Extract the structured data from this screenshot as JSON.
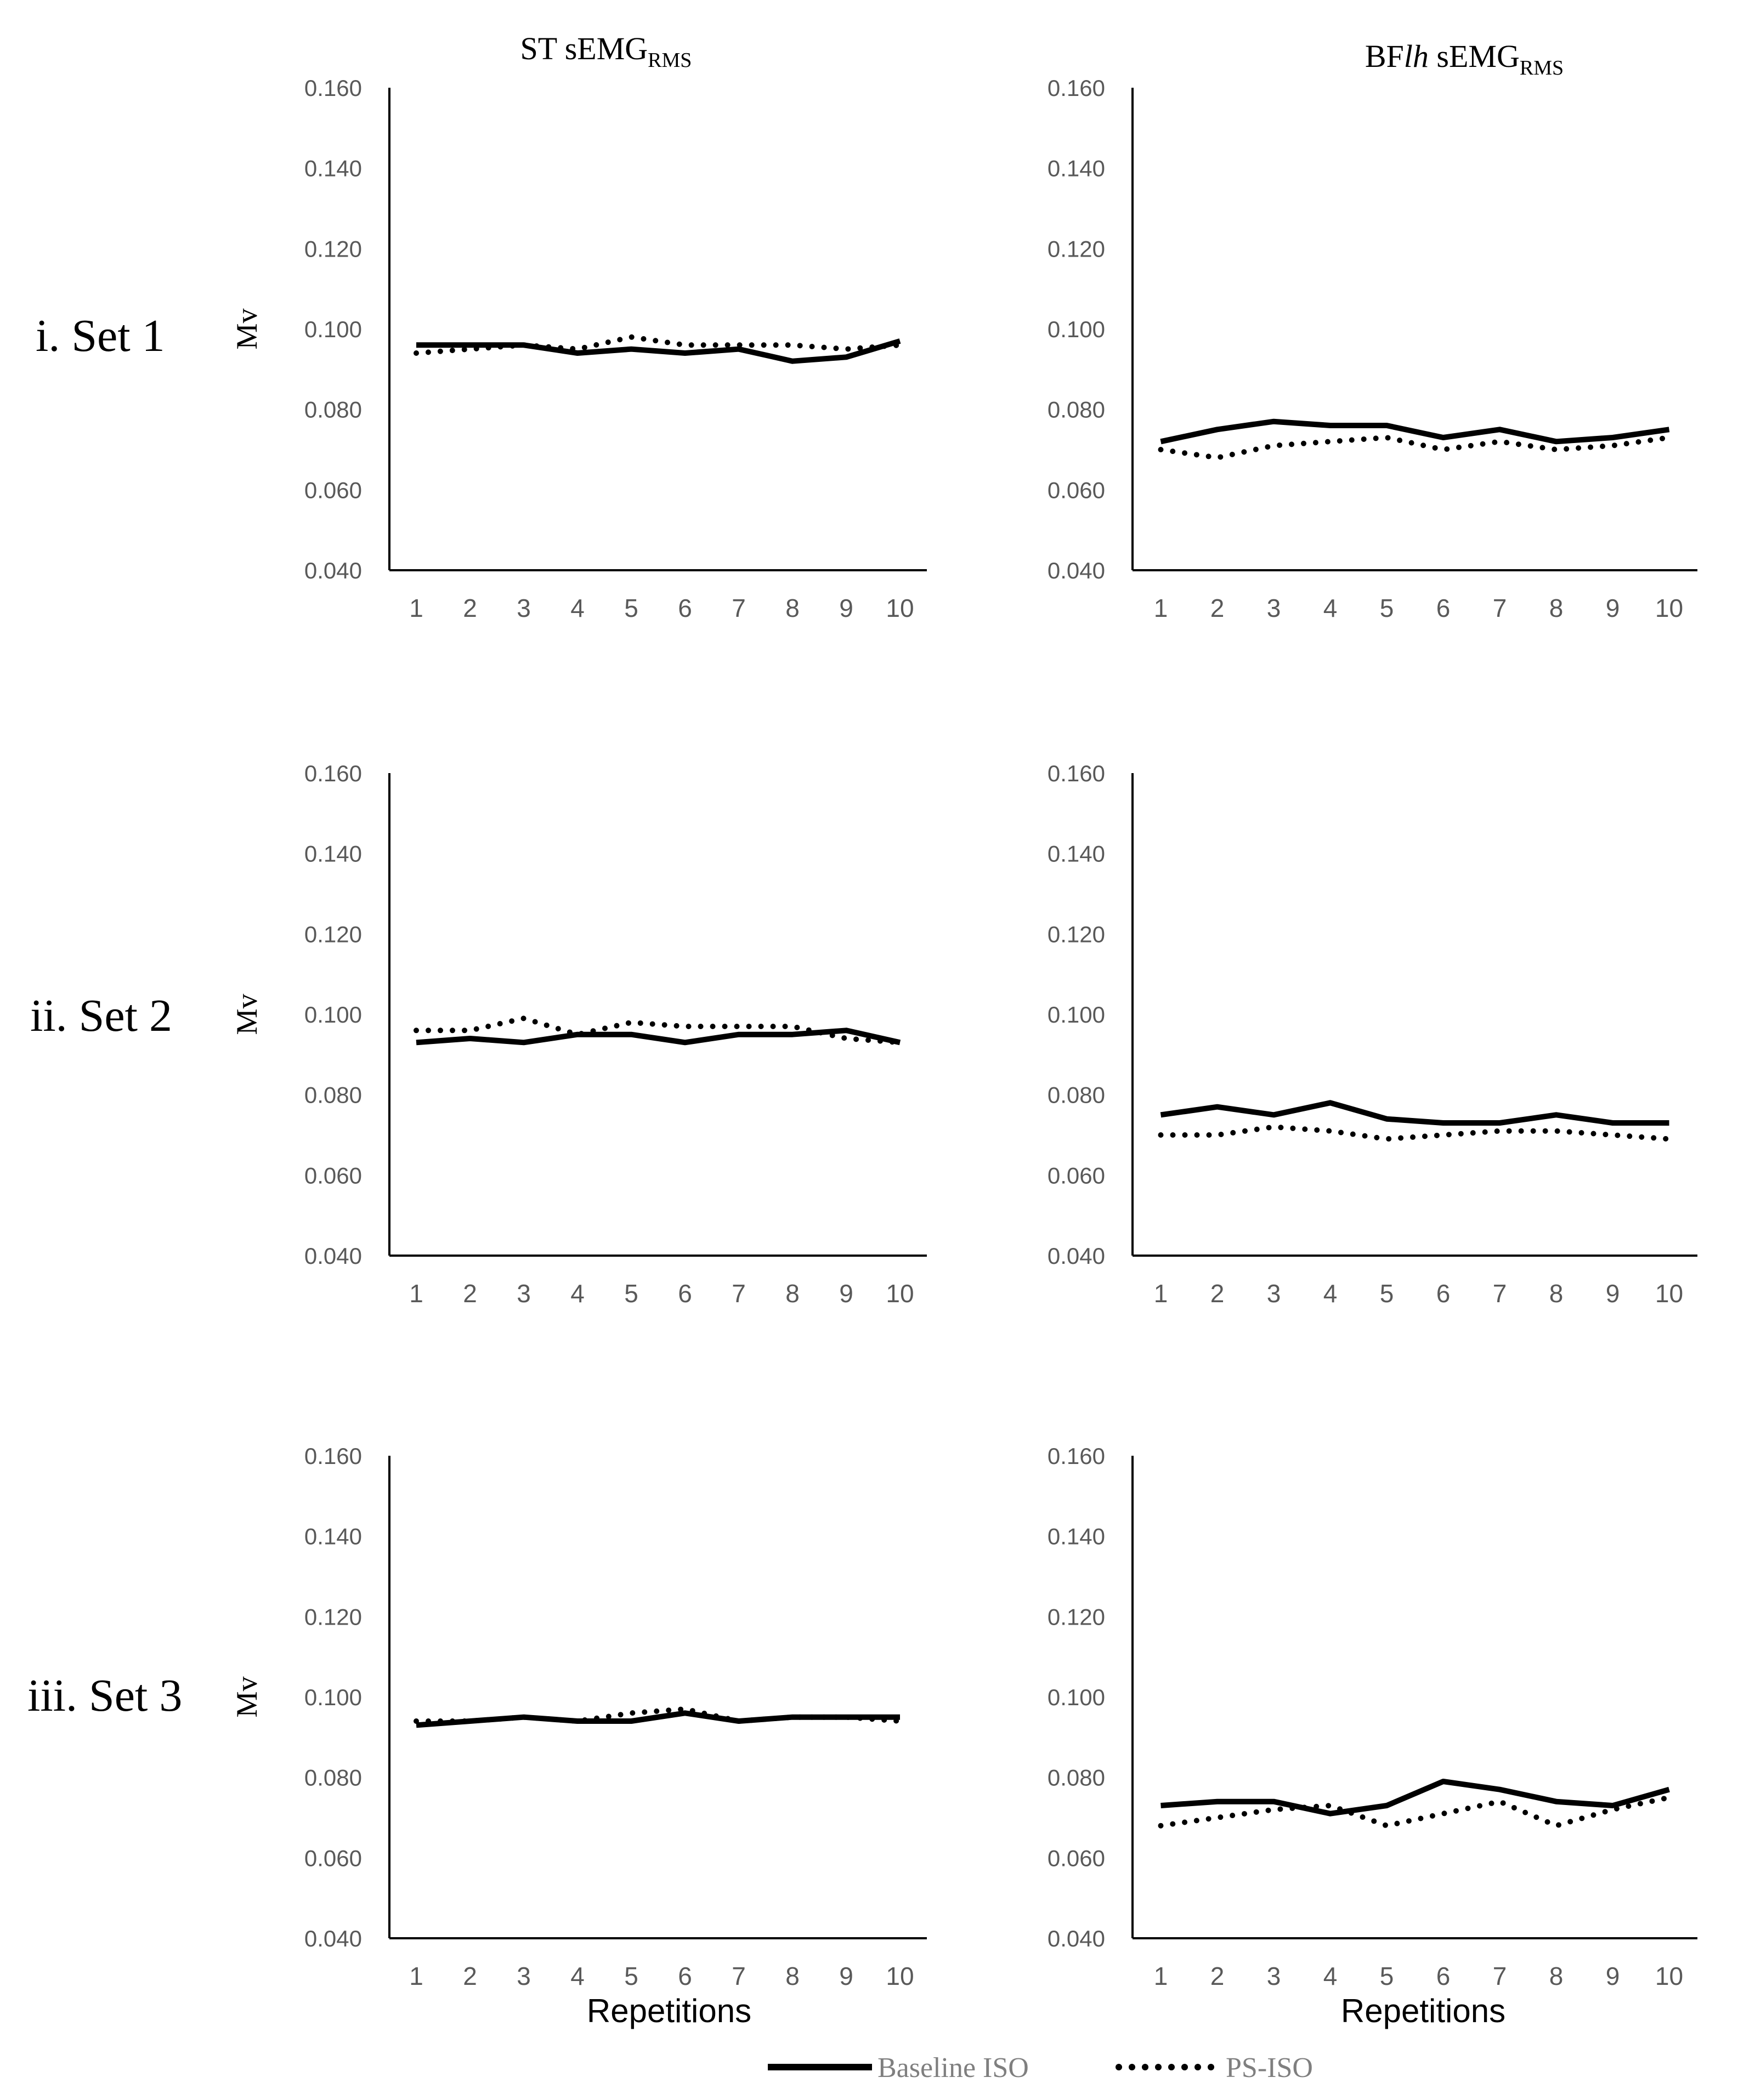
{
  "column_titles": [
    {
      "prefix": "ST",
      "prefix_italic": "",
      "main": "sEMG",
      "sub": "RMS"
    },
    {
      "prefix": "BF",
      "prefix_italic": "lh",
      "main": "sEMG",
      "sub": "RMS"
    }
  ],
  "row_labels": [
    "i. Set 1",
    "ii. Set 2",
    "iii. Set 3"
  ],
  "ylabel": "Mv",
  "xlabel": "Repetitions",
  "legend": [
    {
      "label": "Baseline ISO",
      "style": "solid"
    },
    {
      "label": "PS-ISO",
      "style": "dotted"
    }
  ],
  "colors": {
    "line": "#000000",
    "axis": "#000000",
    "tick_text": "#595959",
    "legend_text": "#7f7f7f"
  },
  "chart_data": [
    {
      "type": "line",
      "row": 1,
      "col": 1,
      "title": "ST sEMG RMS",
      "xlabel": "",
      "ylabel": "Mv",
      "x": [
        1,
        2,
        3,
        4,
        5,
        6,
        7,
        8,
        9,
        10
      ],
      "ylim": [
        0.04,
        0.16
      ],
      "yticks": [
        "0.040",
        "0.060",
        "0.080",
        "0.100",
        "0.120",
        "0.140",
        "0.160"
      ],
      "series": [
        {
          "name": "Baseline ISO",
          "values": [
            0.096,
            0.096,
            0.096,
            0.094,
            0.095,
            0.094,
            0.095,
            0.092,
            0.093,
            0.097
          ]
        },
        {
          "name": "PS-ISO",
          "values": [
            0.094,
            0.095,
            0.096,
            0.095,
            0.098,
            0.096,
            0.096,
            0.096,
            0.095,
            0.096
          ]
        }
      ]
    },
    {
      "type": "line",
      "row": 1,
      "col": 2,
      "title": "BFlh sEMG RMS",
      "xlabel": "",
      "ylabel": "",
      "x": [
        1,
        2,
        3,
        4,
        5,
        6,
        7,
        8,
        9,
        10
      ],
      "ylim": [
        0.04,
        0.16
      ],
      "yticks": [
        "0.040",
        "0.060",
        "0.080",
        "0.100",
        "0.120",
        "0.140",
        "0.160"
      ],
      "series": [
        {
          "name": "Baseline ISO",
          "values": [
            0.072,
            0.075,
            0.077,
            0.076,
            0.076,
            0.073,
            0.075,
            0.072,
            0.073,
            0.075
          ]
        },
        {
          "name": "PS-ISO",
          "values": [
            0.07,
            0.068,
            0.071,
            0.072,
            0.073,
            0.07,
            0.072,
            0.07,
            0.071,
            0.073
          ]
        }
      ]
    },
    {
      "type": "line",
      "row": 2,
      "col": 1,
      "title": "",
      "xlabel": "",
      "ylabel": "Mv",
      "x": [
        1,
        2,
        3,
        4,
        5,
        6,
        7,
        8,
        9,
        10
      ],
      "ylim": [
        0.04,
        0.16
      ],
      "yticks": [
        "0.040",
        "0.060",
        "0.080",
        "0.100",
        "0.120",
        "0.140",
        "0.160"
      ],
      "series": [
        {
          "name": "Baseline ISO",
          "values": [
            0.093,
            0.094,
            0.093,
            0.095,
            0.095,
            0.093,
            0.095,
            0.095,
            0.096,
            0.093
          ]
        },
        {
          "name": "PS-ISO",
          "values": [
            0.096,
            0.096,
            0.099,
            0.095,
            0.098,
            0.097,
            0.097,
            0.097,
            0.094,
            0.093
          ]
        }
      ]
    },
    {
      "type": "line",
      "row": 2,
      "col": 2,
      "title": "",
      "xlabel": "",
      "ylabel": "",
      "x": [
        1,
        2,
        3,
        4,
        5,
        6,
        7,
        8,
        9,
        10
      ],
      "ylim": [
        0.04,
        0.16
      ],
      "yticks": [
        "0.040",
        "0.060",
        "0.080",
        "0.100",
        "0.120",
        "0.140",
        "0.160"
      ],
      "series": [
        {
          "name": "Baseline ISO",
          "values": [
            0.075,
            0.077,
            0.075,
            0.078,
            0.074,
            0.073,
            0.073,
            0.075,
            0.073,
            0.073
          ]
        },
        {
          "name": "PS-ISO",
          "values": [
            0.07,
            0.07,
            0.072,
            0.071,
            0.069,
            0.07,
            0.071,
            0.071,
            0.07,
            0.069
          ]
        }
      ]
    },
    {
      "type": "line",
      "row": 3,
      "col": 1,
      "title": "",
      "xlabel": "Repetitions",
      "ylabel": "Mv",
      "x": [
        1,
        2,
        3,
        4,
        5,
        6,
        7,
        8,
        9,
        10
      ],
      "ylim": [
        0.04,
        0.16
      ],
      "yticks": [
        "0.040",
        "0.060",
        "0.080",
        "0.100",
        "0.120",
        "0.140",
        "0.160"
      ],
      "series": [
        {
          "name": "Baseline ISO",
          "values": [
            0.093,
            0.094,
            0.095,
            0.094,
            0.094,
            0.096,
            0.094,
            0.095,
            0.095,
            0.095
          ]
        },
        {
          "name": "PS-ISO",
          "values": [
            0.094,
            0.094,
            0.095,
            0.094,
            0.096,
            0.097,
            0.094,
            0.095,
            0.095,
            0.094
          ]
        }
      ]
    },
    {
      "type": "line",
      "row": 3,
      "col": 2,
      "title": "",
      "xlabel": "Repetitions",
      "ylabel": "",
      "x": [
        1,
        2,
        3,
        4,
        5,
        6,
        7,
        8,
        9,
        10
      ],
      "ylim": [
        0.04,
        0.16
      ],
      "yticks": [
        "0.040",
        "0.060",
        "0.080",
        "0.100",
        "0.120",
        "0.140",
        "0.160"
      ],
      "series": [
        {
          "name": "Baseline ISO",
          "values": [
            0.073,
            0.074,
            0.074,
            0.071,
            0.073,
            0.079,
            0.077,
            0.074,
            0.073,
            0.077
          ]
        },
        {
          "name": "PS-ISO",
          "values": [
            0.068,
            0.07,
            0.072,
            0.073,
            0.068,
            0.071,
            0.074,
            0.068,
            0.072,
            0.075
          ]
        }
      ]
    }
  ]
}
